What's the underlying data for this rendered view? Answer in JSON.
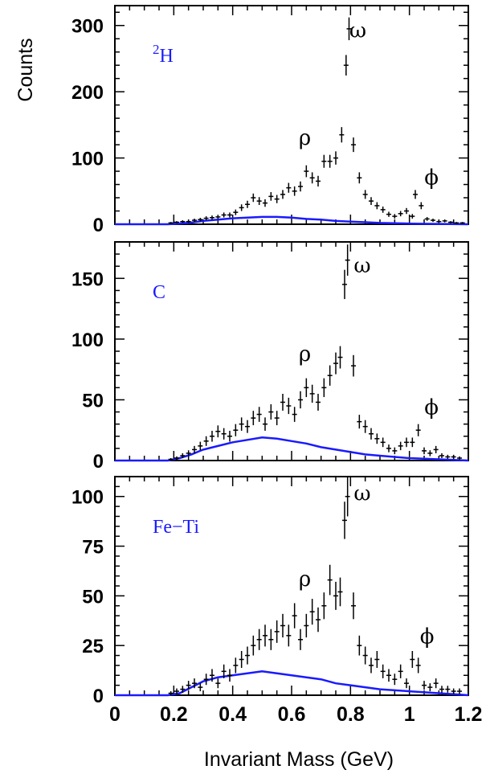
{
  "chart_data": [
    {
      "type": "scatter",
      "panel_label": {
        "text": "H",
        "superscript": "2"
      },
      "ylabel": "Counts",
      "xlabel": "",
      "xlim": [
        0,
        1.2
      ],
      "ylim": [
        0,
        330
      ],
      "yticks": [
        0,
        100,
        200,
        300
      ],
      "peak_labels": [
        {
          "text": "ρ",
          "x": 0.645,
          "y": 120
        },
        {
          "text": "ω",
          "x": 0.825,
          "y": 282
        },
        {
          "text": "ϕ",
          "x": 1.075,
          "y": 60
        }
      ],
      "points": [
        [
          0.19,
          2
        ],
        [
          0.21,
          3
        ],
        [
          0.23,
          4
        ],
        [
          0.25,
          4
        ],
        [
          0.27,
          6
        ],
        [
          0.29,
          7
        ],
        [
          0.31,
          9
        ],
        [
          0.33,
          10
        ],
        [
          0.35,
          11
        ],
        [
          0.37,
          14
        ],
        [
          0.39,
          14
        ],
        [
          0.41,
          18
        ],
        [
          0.43,
          25
        ],
        [
          0.45,
          30
        ],
        [
          0.47,
          40
        ],
        [
          0.49,
          35
        ],
        [
          0.51,
          32
        ],
        [
          0.53,
          42
        ],
        [
          0.55,
          38
        ],
        [
          0.57,
          45
        ],
        [
          0.59,
          55
        ],
        [
          0.61,
          50
        ],
        [
          0.63,
          57
        ],
        [
          0.65,
          80
        ],
        [
          0.67,
          70
        ],
        [
          0.69,
          65
        ],
        [
          0.71,
          95
        ],
        [
          0.73,
          95
        ],
        [
          0.75,
          100
        ],
        [
          0.77,
          135
        ],
        [
          0.785,
          240
        ],
        [
          0.795,
          295
        ],
        [
          0.81,
          120
        ],
        [
          0.83,
          70
        ],
        [
          0.85,
          45
        ],
        [
          0.87,
          35
        ],
        [
          0.89,
          28
        ],
        [
          0.91,
          22
        ],
        [
          0.93,
          15
        ],
        [
          0.95,
          12
        ],
        [
          0.97,
          16
        ],
        [
          0.99,
          20
        ],
        [
          1.01,
          12
        ],
        [
          1.02,
          45
        ],
        [
          1.04,
          28
        ],
        [
          1.06,
          8
        ],
        [
          1.08,
          6
        ],
        [
          1.1,
          4
        ],
        [
          1.12,
          5
        ],
        [
          1.14,
          3
        ],
        [
          1.16,
          2
        ],
        [
          1.18,
          2
        ]
      ],
      "background_curve": [
        [
          0.0,
          0
        ],
        [
          0.18,
          0
        ],
        [
          0.25,
          2
        ],
        [
          0.3,
          5
        ],
        [
          0.35,
          7
        ],
        [
          0.4,
          9
        ],
        [
          0.45,
          10
        ],
        [
          0.5,
          11
        ],
        [
          0.55,
          11
        ],
        [
          0.6,
          10
        ],
        [
          0.65,
          8
        ],
        [
          0.7,
          7
        ],
        [
          0.75,
          5
        ],
        [
          0.8,
          4
        ],
        [
          0.85,
          3
        ],
        [
          0.9,
          2
        ],
        [
          1.0,
          1
        ],
        [
          1.1,
          0.5
        ],
        [
          1.2,
          0
        ]
      ]
    },
    {
      "type": "scatter",
      "panel_label": {
        "text": "C",
        "superscript": ""
      },
      "ylabel": "",
      "xlabel": "",
      "xlim": [
        0,
        1.2
      ],
      "ylim": [
        0,
        180
      ],
      "yticks": [
        0,
        50,
        100,
        150
      ],
      "peak_labels": [
        {
          "text": "ρ",
          "x": 0.645,
          "y": 82
        },
        {
          "text": "ω",
          "x": 0.84,
          "y": 155
        },
        {
          "text": "ϕ",
          "x": 1.075,
          "y": 38
        }
      ],
      "points": [
        [
          0.19,
          1
        ],
        [
          0.21,
          2
        ],
        [
          0.23,
          4
        ],
        [
          0.25,
          6
        ],
        [
          0.27,
          9
        ],
        [
          0.29,
          12
        ],
        [
          0.31,
          16
        ],
        [
          0.33,
          20
        ],
        [
          0.35,
          24
        ],
        [
          0.37,
          22
        ],
        [
          0.39,
          20
        ],
        [
          0.41,
          25
        ],
        [
          0.43,
          30
        ],
        [
          0.45,
          28
        ],
        [
          0.47,
          35
        ],
        [
          0.49,
          38
        ],
        [
          0.51,
          30
        ],
        [
          0.53,
          40
        ],
        [
          0.55,
          35
        ],
        [
          0.57,
          48
        ],
        [
          0.59,
          45
        ],
        [
          0.61,
          38
        ],
        [
          0.63,
          50
        ],
        [
          0.65,
          60
        ],
        [
          0.67,
          55
        ],
        [
          0.69,
          48
        ],
        [
          0.71,
          60
        ],
        [
          0.73,
          70
        ],
        [
          0.75,
          80
        ],
        [
          0.765,
          85
        ],
        [
          0.78,
          145
        ],
        [
          0.79,
          165
        ],
        [
          0.81,
          78
        ],
        [
          0.83,
          32
        ],
        [
          0.85,
          28
        ],
        [
          0.87,
          22
        ],
        [
          0.89,
          18
        ],
        [
          0.91,
          15
        ],
        [
          0.93,
          10
        ],
        [
          0.95,
          8
        ],
        [
          0.97,
          12
        ],
        [
          0.99,
          15
        ],
        [
          1.01,
          15
        ],
        [
          1.03,
          25
        ],
        [
          1.05,
          8
        ],
        [
          1.07,
          6
        ],
        [
          1.09,
          9
        ],
        [
          1.11,
          4
        ],
        [
          1.13,
          3
        ],
        [
          1.15,
          3
        ],
        [
          1.17,
          2
        ]
      ],
      "background_curve": [
        [
          0.0,
          0
        ],
        [
          0.18,
          0
        ],
        [
          0.22,
          2
        ],
        [
          0.26,
          5
        ],
        [
          0.3,
          9
        ],
        [
          0.35,
          12
        ],
        [
          0.4,
          15
        ],
        [
          0.45,
          17
        ],
        [
          0.5,
          19
        ],
        [
          0.55,
          18
        ],
        [
          0.6,
          16
        ],
        [
          0.65,
          14
        ],
        [
          0.7,
          11
        ],
        [
          0.75,
          9
        ],
        [
          0.8,
          7
        ],
        [
          0.85,
          5
        ],
        [
          0.9,
          4
        ],
        [
          1.0,
          2
        ],
        [
          1.1,
          1
        ],
        [
          1.2,
          0
        ]
      ]
    },
    {
      "type": "scatter",
      "panel_label": {
        "text": "Fe−Ti",
        "superscript": ""
      },
      "ylabel": "",
      "xlabel": "Invariant Mass (GeV)",
      "xlim": [
        0,
        1.2
      ],
      "xticks": [
        0,
        0.2,
        0.4,
        0.6,
        0.8,
        1,
        1.2
      ],
      "ylim": [
        0,
        110
      ],
      "yticks": [
        0,
        25,
        50,
        75,
        100
      ],
      "peak_labels": [
        {
          "text": "ρ",
          "x": 0.645,
          "y": 55
        },
        {
          "text": "ω",
          "x": 0.84,
          "y": 98
        },
        {
          "text": "ϕ",
          "x": 1.06,
          "y": 26
        }
      ],
      "points": [
        [
          0.19,
          1
        ],
        [
          0.21,
          2
        ],
        [
          0.23,
          3
        ],
        [
          0.25,
          5
        ],
        [
          0.27,
          6
        ],
        [
          0.29,
          4
        ],
        [
          0.31,
          8
        ],
        [
          0.33,
          10
        ],
        [
          0.35,
          6
        ],
        [
          0.37,
          12
        ],
        [
          0.39,
          10
        ],
        [
          0.41,
          15
        ],
        [
          0.43,
          18
        ],
        [
          0.45,
          20
        ],
        [
          0.47,
          25
        ],
        [
          0.49,
          28
        ],
        [
          0.51,
          30
        ],
        [
          0.53,
          28
        ],
        [
          0.55,
          32
        ],
        [
          0.57,
          35
        ],
        [
          0.59,
          30
        ],
        [
          0.61,
          40
        ],
        [
          0.63,
          28
        ],
        [
          0.65,
          35
        ],
        [
          0.67,
          42
        ],
        [
          0.69,
          38
        ],
        [
          0.71,
          45
        ],
        [
          0.73,
          58
        ],
        [
          0.75,
          50
        ],
        [
          0.765,
          52
        ],
        [
          0.78,
          88
        ],
        [
          0.79,
          100
        ],
        [
          0.81,
          45
        ],
        [
          0.83,
          25
        ],
        [
          0.85,
          20
        ],
        [
          0.87,
          15
        ],
        [
          0.89,
          18
        ],
        [
          0.91,
          12
        ],
        [
          0.93,
          10
        ],
        [
          0.95,
          8
        ],
        [
          0.97,
          12
        ],
        [
          0.99,
          6
        ],
        [
          1.01,
          18
        ],
        [
          1.03,
          15
        ],
        [
          1.05,
          5
        ],
        [
          1.07,
          4
        ],
        [
          1.09,
          6
        ],
        [
          1.11,
          3
        ],
        [
          1.13,
          3
        ],
        [
          1.15,
          2
        ],
        [
          1.17,
          2
        ]
      ],
      "background_curve": [
        [
          0.0,
          0
        ],
        [
          0.18,
          0
        ],
        [
          0.22,
          1
        ],
        [
          0.26,
          4
        ],
        [
          0.3,
          7
        ],
        [
          0.35,
          9
        ],
        [
          0.4,
          10
        ],
        [
          0.45,
          11
        ],
        [
          0.5,
          12
        ],
        [
          0.55,
          11
        ],
        [
          0.6,
          10
        ],
        [
          0.65,
          9
        ],
        [
          0.7,
          8
        ],
        [
          0.75,
          6
        ],
        [
          0.8,
          5
        ],
        [
          0.85,
          4
        ],
        [
          0.9,
          3
        ],
        [
          1.0,
          2
        ],
        [
          1.1,
          1
        ],
        [
          1.2,
          0
        ]
      ]
    }
  ],
  "colors": {
    "data": "#000000",
    "background_curve": "#1a1aff",
    "panel_label": "#1a1aff"
  }
}
